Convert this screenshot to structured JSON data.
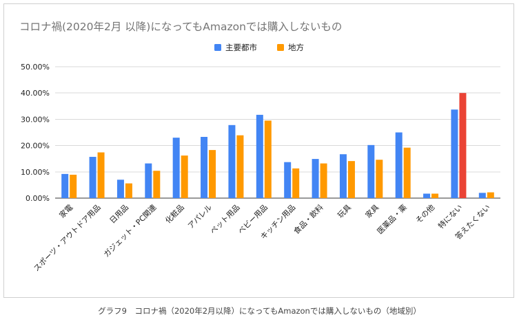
{
  "chart_data": {
    "type": "bar",
    "title": "コロナ禍(2020年2月 以降)になってもAmazonでは購入しないもの",
    "xlabel": "",
    "ylabel": "",
    "ylim": [
      0,
      0.5
    ],
    "yticks": [
      "0.00%",
      "10.00%",
      "20.00%",
      "30.00%",
      "40.00%",
      "50.00%"
    ],
    "grid": true,
    "legend_position": "top-center",
    "categories": [
      "家電",
      "スポーツ・アウトドア用品",
      "日用品",
      "ガジェット・PC関連",
      "化粧品",
      "アパレル",
      "ペット用品",
      "ベビー用品",
      "キッチン用品",
      "食品・飲料",
      "玩具",
      "家具",
      "医薬品・薬",
      "その他",
      "特にない",
      "答えたくない"
    ],
    "series": [
      {
        "name": "主要都市",
        "color": "#4285f4",
        "values": [
          0.092,
          0.157,
          0.07,
          0.132,
          0.23,
          0.233,
          0.278,
          0.317,
          0.137,
          0.149,
          0.167,
          0.202,
          0.25,
          0.017,
          0.337,
          0.02
        ]
      },
      {
        "name": "地方",
        "color": "#ff9900",
        "values": [
          0.089,
          0.174,
          0.056,
          0.104,
          0.162,
          0.183,
          0.239,
          0.295,
          0.113,
          0.132,
          0.141,
          0.146,
          0.192,
          0.017,
          0.4,
          0.022
        ]
      }
    ],
    "highlight": {
      "category_index": 14,
      "series_index": 1,
      "color": "#ea4335"
    }
  },
  "caption": "グラフ9　コロナ禍（2020年2月以降）になってもAmazonでは購入しないもの（地域別）"
}
